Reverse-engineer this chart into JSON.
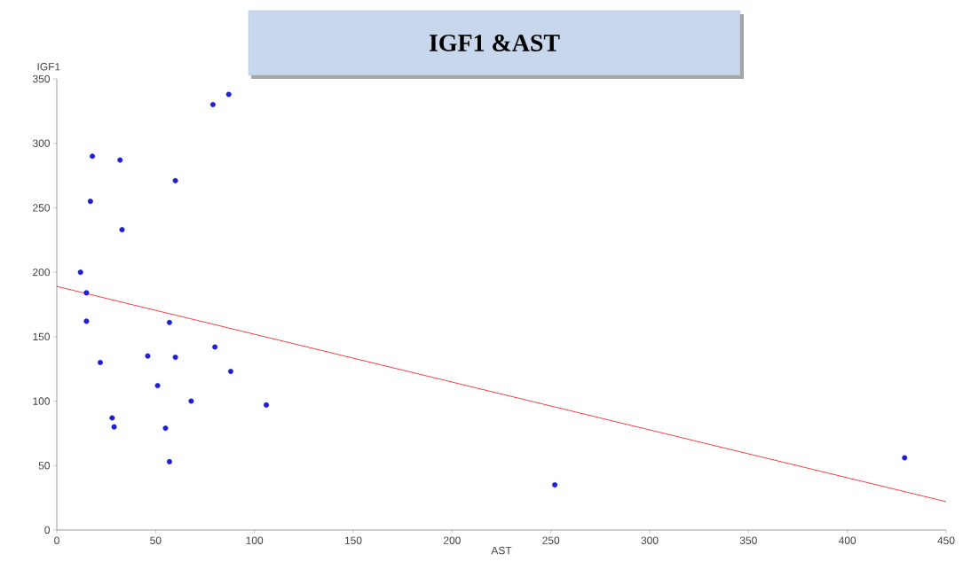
{
  "chart_data": {
    "type": "scatter",
    "title": "IGF1 &AST",
    "xlabel": "AST",
    "ylabel": "IGF1",
    "xlim": [
      0,
      450
    ],
    "xticks": [
      0,
      50,
      100,
      150,
      200,
      250,
      300,
      350,
      400,
      450
    ],
    "ylim": [
      0,
      350
    ],
    "yticks": [
      0,
      50,
      100,
      150,
      200,
      250,
      300,
      350
    ],
    "grid": false,
    "series": [
      {
        "marker": "circle",
        "color": "#1f1fd0",
        "x": [
          12,
          15,
          15,
          17,
          18,
          22,
          28,
          29,
          32,
          33,
          46,
          51,
          55,
          57,
          57,
          60,
          60,
          68,
          79,
          80,
          87,
          88,
          106,
          252,
          429
        ],
        "values": [
          200,
          184,
          162,
          255,
          290,
          130,
          87,
          80,
          287,
          233,
          135,
          112,
          79,
          53,
          161,
          134,
          271,
          100,
          330,
          142,
          338,
          123,
          97,
          35,
          56
        ]
      },
      {
        "type": "line",
        "color": "#ee1111",
        "line_style": "solid",
        "x": [
          0,
          450
        ],
        "values": [
          189,
          22
        ]
      }
    ]
  }
}
